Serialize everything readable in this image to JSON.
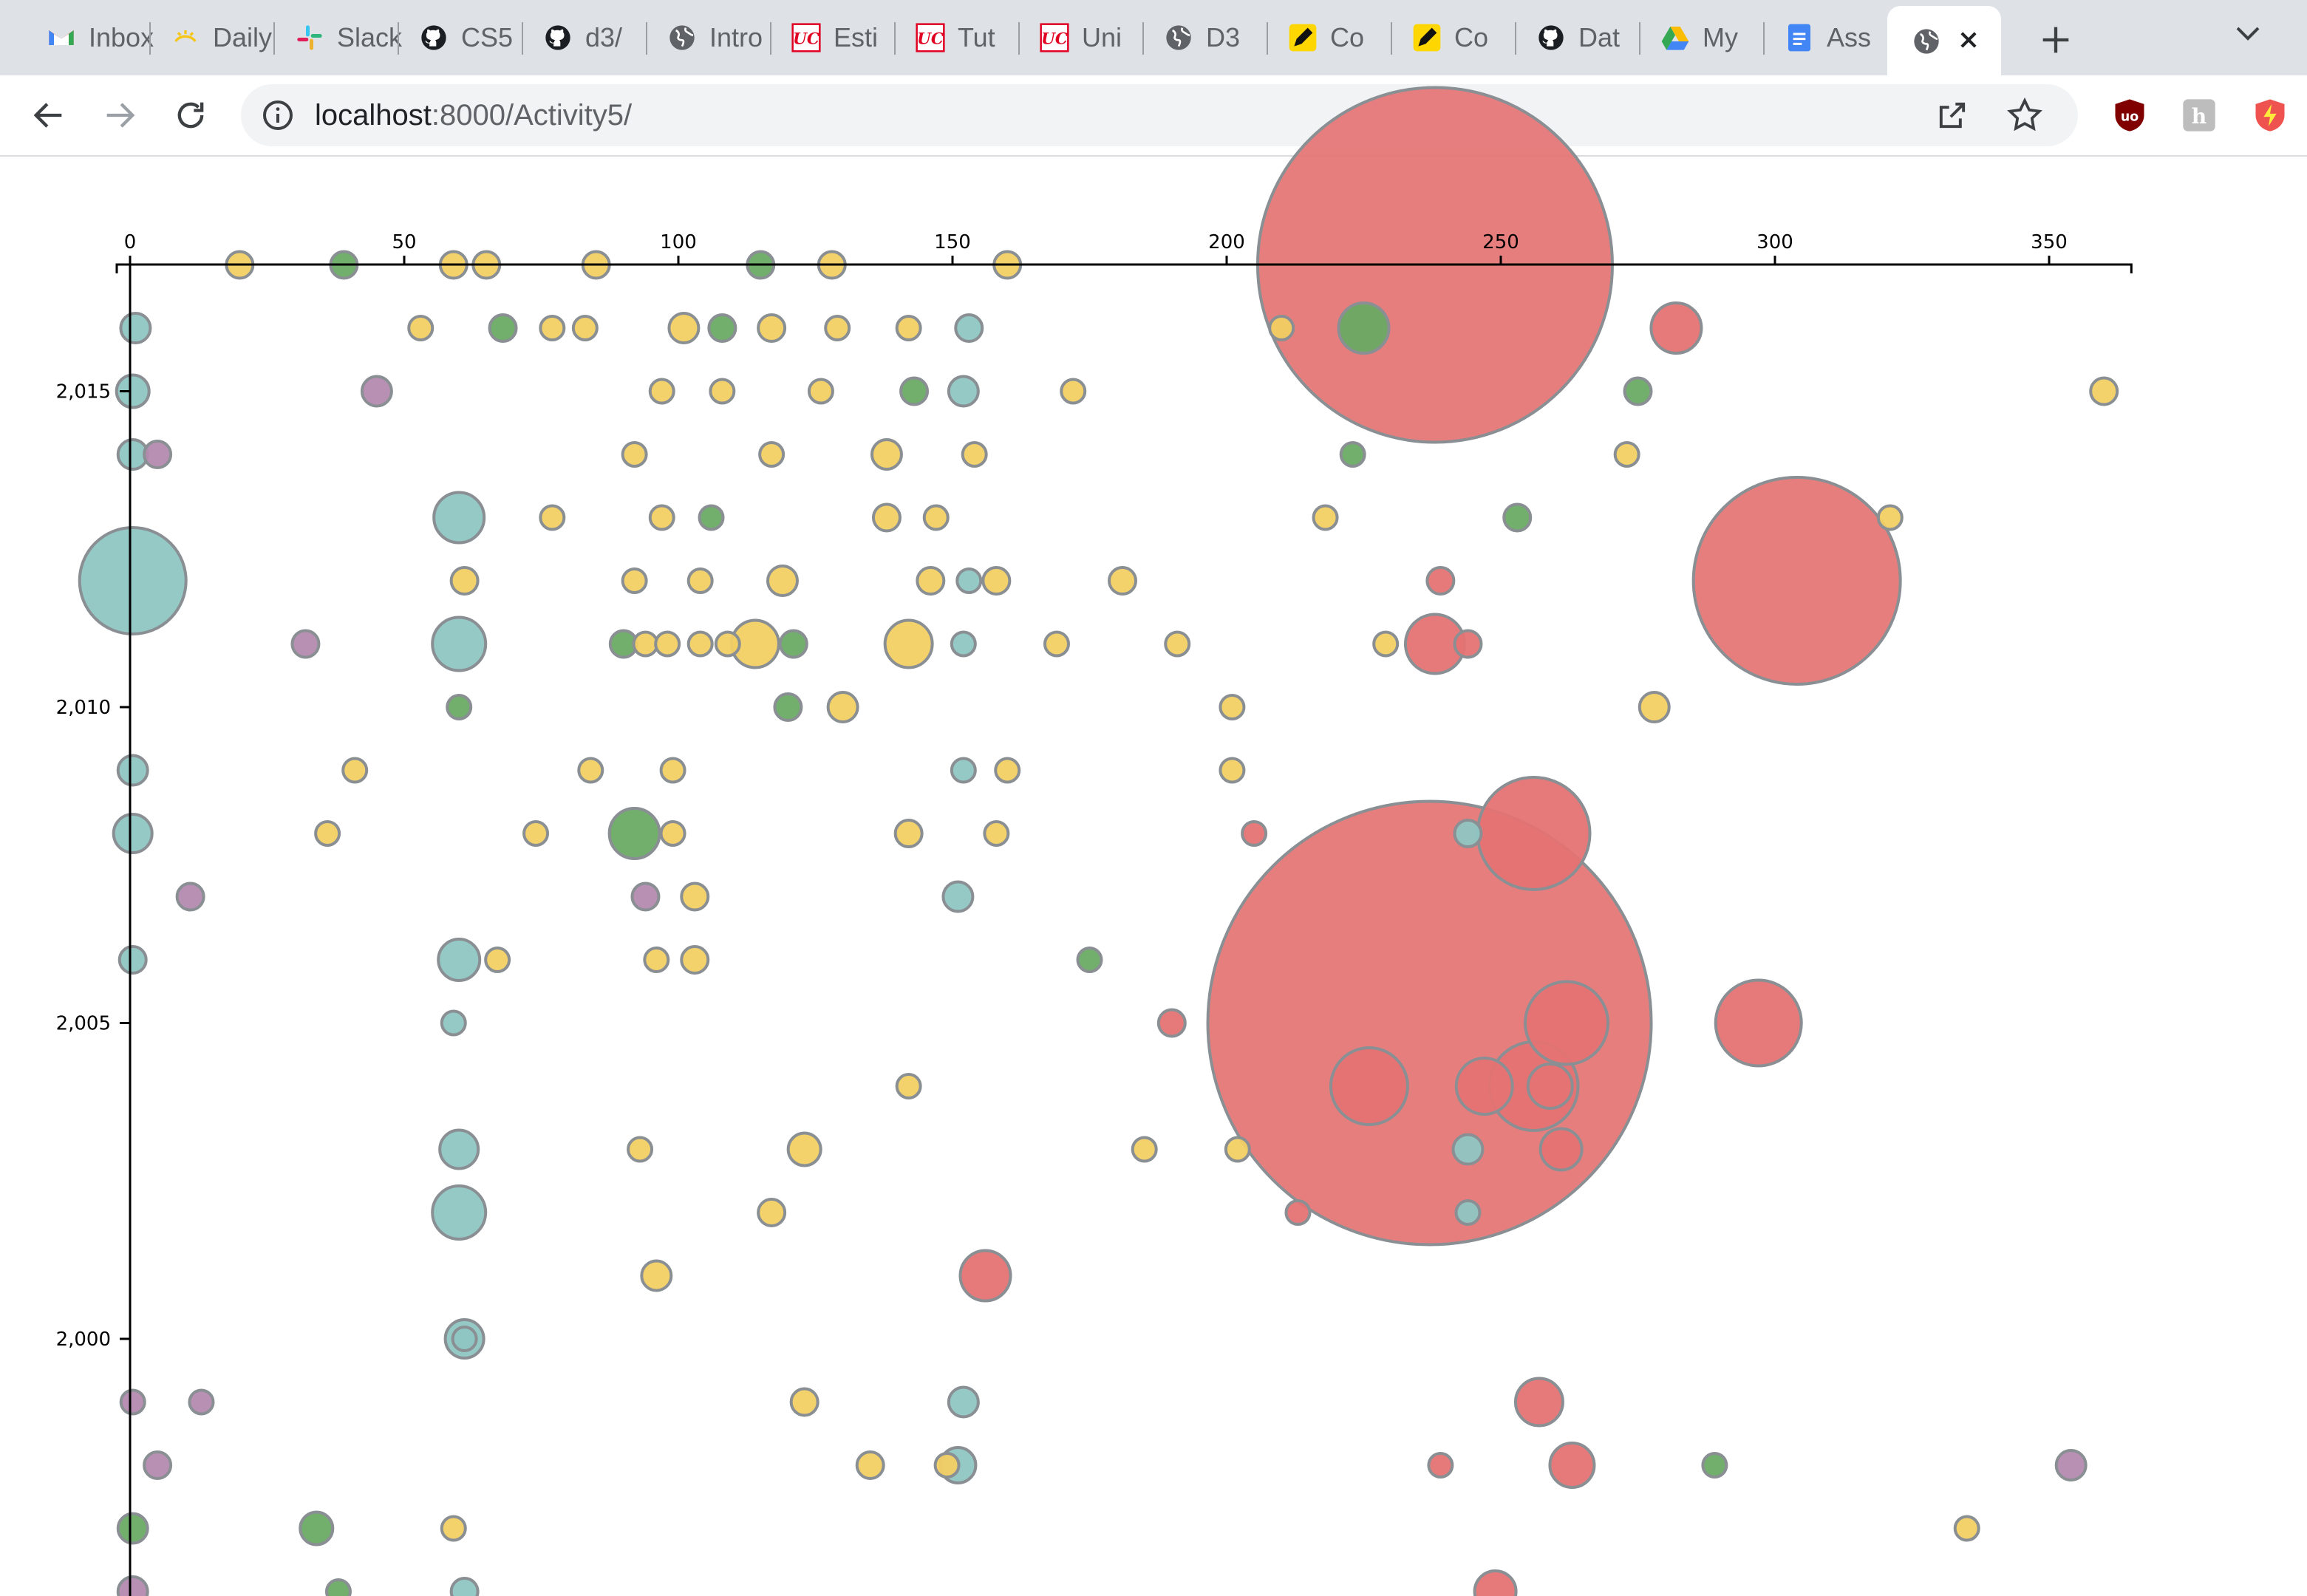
{
  "browser": {
    "tabs": [
      {
        "title": "Inbox",
        "icon": "gmail-icon"
      },
      {
        "title": "Daily",
        "icon": "sun-icon"
      },
      {
        "title": "Slack",
        "icon": "slack-icon"
      },
      {
        "title": "CS5",
        "icon": "github-icon"
      },
      {
        "title": "d3/",
        "icon": "github-icon"
      },
      {
        "title": "Intro",
        "icon": "globe-icon"
      },
      {
        "title": "Esti",
        "icon": "university-icon"
      },
      {
        "title": "Tut",
        "icon": "university-icon"
      },
      {
        "title": "Uni",
        "icon": "university-icon"
      },
      {
        "title": "D3",
        "icon": "globe-icon"
      },
      {
        "title": "Co",
        "icon": "pencil-icon"
      },
      {
        "title": "Co",
        "icon": "pencil-icon"
      },
      {
        "title": "Dat",
        "icon": "github-icon"
      },
      {
        "title": "My",
        "icon": "drive-icon"
      },
      {
        "title": "Ass",
        "icon": "docs-icon"
      }
    ],
    "active_tab": {
      "icon": "globe-icon"
    },
    "address": {
      "host": "localhost",
      "rest": ":8000/Activity5/"
    },
    "extensions": [
      "ublock-icon",
      "hypothesis-icon",
      "flash-icon"
    ]
  },
  "colors": {
    "teal": "#8ec6c3",
    "purple": "#b48aaf",
    "green": "#6aaa64",
    "yellow": "#f2cf63",
    "red": "#e57373",
    "stroke": "#8a8f94"
  },
  "chart_data": {
    "type": "scatter",
    "x_ticks": [
      {
        "value": 0,
        "label": "0"
      },
      {
        "value": 50,
        "label": "50"
      },
      {
        "value": 100,
        "label": "100"
      },
      {
        "value": 150,
        "label": "150"
      },
      {
        "value": 200,
        "label": "200"
      },
      {
        "value": 250,
        "label": "250"
      },
      {
        "value": 300,
        "label": "300"
      },
      {
        "value": 350,
        "label": "350"
      }
    ],
    "y_ticks": [
      {
        "value": 2000,
        "label": "2,000"
      },
      {
        "value": 2005,
        "label": "2,005"
      },
      {
        "value": 2010,
        "label": "2,010"
      },
      {
        "value": 2015,
        "label": "2,015"
      }
    ],
    "xlim": [
      0,
      365
    ],
    "ylim": [
      1996,
      2017.5
    ],
    "legend": "none",
    "grid": false,
    "points": [
      {
        "x": 20,
        "y": 2017,
        "c": "yellow",
        "r": 9
      },
      {
        "x": 39,
        "y": 2017,
        "c": "green",
        "r": 9
      },
      {
        "x": 59,
        "y": 2017,
        "c": "yellow",
        "r": 9
      },
      {
        "x": 65,
        "y": 2017,
        "c": "yellow",
        "r": 9
      },
      {
        "x": 85,
        "y": 2017,
        "c": "yellow",
        "r": 9
      },
      {
        "x": 115,
        "y": 2017,
        "c": "green",
        "r": 9
      },
      {
        "x": 128,
        "y": 2017,
        "c": "yellow",
        "r": 9
      },
      {
        "x": 160,
        "y": 2017,
        "c": "yellow",
        "r": 9
      },
      {
        "x": 238,
        "y": 2017,
        "c": "red",
        "r": 120
      },
      {
        "x": 1,
        "y": 2016,
        "c": "teal",
        "r": 10
      },
      {
        "x": 53,
        "y": 2016,
        "c": "yellow",
        "r": 8
      },
      {
        "x": 68,
        "y": 2016,
        "c": "green",
        "r": 9
      },
      {
        "x": 77,
        "y": 2016,
        "c": "yellow",
        "r": 8
      },
      {
        "x": 83,
        "y": 2016,
        "c": "yellow",
        "r": 8
      },
      {
        "x": 101,
        "y": 2016,
        "c": "yellow",
        "r": 10
      },
      {
        "x": 108,
        "y": 2016,
        "c": "green",
        "r": 9
      },
      {
        "x": 117,
        "y": 2016,
        "c": "yellow",
        "r": 9
      },
      {
        "x": 129,
        "y": 2016,
        "c": "yellow",
        "r": 8
      },
      {
        "x": 142,
        "y": 2016,
        "c": "yellow",
        "r": 8
      },
      {
        "x": 153,
        "y": 2016,
        "c": "teal",
        "r": 9
      },
      {
        "x": 210,
        "y": 2016,
        "c": "yellow",
        "r": 8
      },
      {
        "x": 225,
        "y": 2016,
        "c": "green",
        "r": 17
      },
      {
        "x": 282,
        "y": 2016,
        "c": "red",
        "r": 17
      },
      {
        "x": 0.5,
        "y": 2015,
        "c": "teal",
        "r": 11
      },
      {
        "x": 45,
        "y": 2015,
        "c": "purple",
        "r": 10
      },
      {
        "x": 97,
        "y": 2015,
        "c": "yellow",
        "r": 8
      },
      {
        "x": 108,
        "y": 2015,
        "c": "yellow",
        "r": 8
      },
      {
        "x": 126,
        "y": 2015,
        "c": "yellow",
        "r": 8
      },
      {
        "x": 143,
        "y": 2015,
        "c": "green",
        "r": 9
      },
      {
        "x": 152,
        "y": 2015,
        "c": "teal",
        "r": 10
      },
      {
        "x": 172,
        "y": 2015,
        "c": "yellow",
        "r": 8
      },
      {
        "x": 275,
        "y": 2015,
        "c": "green",
        "r": 9
      },
      {
        "x": 360,
        "y": 2015,
        "c": "yellow",
        "r": 9
      },
      {
        "x": 0.5,
        "y": 2014,
        "c": "teal",
        "r": 10
      },
      {
        "x": 5,
        "y": 2014,
        "c": "purple",
        "r": 9
      },
      {
        "x": 92,
        "y": 2014,
        "c": "yellow",
        "r": 8
      },
      {
        "x": 117,
        "y": 2014,
        "c": "yellow",
        "r": 8
      },
      {
        "x": 138,
        "y": 2014,
        "c": "yellow",
        "r": 10
      },
      {
        "x": 154,
        "y": 2014,
        "c": "yellow",
        "r": 8
      },
      {
        "x": 223,
        "y": 2014,
        "c": "green",
        "r": 8
      },
      {
        "x": 273,
        "y": 2014,
        "c": "yellow",
        "r": 8
      },
      {
        "x": 60,
        "y": 2013,
        "c": "teal",
        "r": 17
      },
      {
        "x": 77,
        "y": 2013,
        "c": "yellow",
        "r": 8
      },
      {
        "x": 97,
        "y": 2013,
        "c": "yellow",
        "r": 8
      },
      {
        "x": 106,
        "y": 2013,
        "c": "green",
        "r": 8
      },
      {
        "x": 138,
        "y": 2013,
        "c": "yellow",
        "r": 9
      },
      {
        "x": 147,
        "y": 2013,
        "c": "yellow",
        "r": 8
      },
      {
        "x": 218,
        "y": 2013,
        "c": "yellow",
        "r": 8
      },
      {
        "x": 253,
        "y": 2013,
        "c": "green",
        "r": 9
      },
      {
        "x": 321,
        "y": 2013,
        "c": "yellow",
        "r": 8
      },
      {
        "x": 0.5,
        "y": 2012,
        "c": "teal",
        "r": 36
      },
      {
        "x": 61,
        "y": 2012,
        "c": "yellow",
        "r": 9
      },
      {
        "x": 92,
        "y": 2012,
        "c": "yellow",
        "r": 8
      },
      {
        "x": 104,
        "y": 2012,
        "c": "yellow",
        "r": 8
      },
      {
        "x": 119,
        "y": 2012,
        "c": "yellow",
        "r": 10
      },
      {
        "x": 146,
        "y": 2012,
        "c": "yellow",
        "r": 9
      },
      {
        "x": 153,
        "y": 2012,
        "c": "teal",
        "r": 8
      },
      {
        "x": 158,
        "y": 2012,
        "c": "yellow",
        "r": 9
      },
      {
        "x": 181,
        "y": 2012,
        "c": "yellow",
        "r": 9
      },
      {
        "x": 239,
        "y": 2012,
        "c": "red",
        "r": 9
      },
      {
        "x": 304,
        "y": 2012,
        "c": "red",
        "r": 70
      },
      {
        "x": 32,
        "y": 2011,
        "c": "purple",
        "r": 9
      },
      {
        "x": 60,
        "y": 2011,
        "c": "teal",
        "r": 18
      },
      {
        "x": 90,
        "y": 2011,
        "c": "green",
        "r": 9
      },
      {
        "x": 94,
        "y": 2011,
        "c": "yellow",
        "r": 8
      },
      {
        "x": 98,
        "y": 2011,
        "c": "yellow",
        "r": 8
      },
      {
        "x": 104,
        "y": 2011,
        "c": "yellow",
        "r": 8
      },
      {
        "x": 109,
        "y": 2011,
        "c": "yellow",
        "r": 8
      },
      {
        "x": 114,
        "y": 2011,
        "c": "yellow",
        "r": 16
      },
      {
        "x": 121,
        "y": 2011,
        "c": "green",
        "r": 9
      },
      {
        "x": 142,
        "y": 2011,
        "c": "yellow",
        "r": 16
      },
      {
        "x": 152,
        "y": 2011,
        "c": "teal",
        "r": 8
      },
      {
        "x": 169,
        "y": 2011,
        "c": "yellow",
        "r": 8
      },
      {
        "x": 191,
        "y": 2011,
        "c": "yellow",
        "r": 8
      },
      {
        "x": 229,
        "y": 2011,
        "c": "yellow",
        "r": 8
      },
      {
        "x": 238,
        "y": 2011,
        "c": "red",
        "r": 20
      },
      {
        "x": 244,
        "y": 2011,
        "c": "red",
        "r": 9
      },
      {
        "x": 60,
        "y": 2010,
        "c": "green",
        "r": 8
      },
      {
        "x": 120,
        "y": 2010,
        "c": "green",
        "r": 9
      },
      {
        "x": 130,
        "y": 2010,
        "c": "yellow",
        "r": 10
      },
      {
        "x": 201,
        "y": 2010,
        "c": "yellow",
        "r": 8
      },
      {
        "x": 278,
        "y": 2010,
        "c": "yellow",
        "r": 10
      },
      {
        "x": 0.5,
        "y": 2009,
        "c": "teal",
        "r": 10
      },
      {
        "x": 41,
        "y": 2009,
        "c": "yellow",
        "r": 8
      },
      {
        "x": 84,
        "y": 2009,
        "c": "yellow",
        "r": 8
      },
      {
        "x": 99,
        "y": 2009,
        "c": "yellow",
        "r": 8
      },
      {
        "x": 152,
        "y": 2009,
        "c": "teal",
        "r": 8
      },
      {
        "x": 160,
        "y": 2009,
        "c": "yellow",
        "r": 8
      },
      {
        "x": 201,
        "y": 2009,
        "c": "yellow",
        "r": 8
      },
      {
        "x": 0.5,
        "y": 2008,
        "c": "teal",
        "r": 13
      },
      {
        "x": 36,
        "y": 2008,
        "c": "yellow",
        "r": 8
      },
      {
        "x": 74,
        "y": 2008,
        "c": "yellow",
        "r": 8
      },
      {
        "x": 92,
        "y": 2008,
        "c": "green",
        "r": 17
      },
      {
        "x": 99,
        "y": 2008,
        "c": "yellow",
        "r": 8
      },
      {
        "x": 142,
        "y": 2008,
        "c": "yellow",
        "r": 9
      },
      {
        "x": 158,
        "y": 2008,
        "c": "yellow",
        "r": 8
      },
      {
        "x": 205,
        "y": 2008,
        "c": "red",
        "r": 8
      },
      {
        "x": 244,
        "y": 2008,
        "c": "teal",
        "r": 9
      },
      {
        "x": 256,
        "y": 2008,
        "c": "red",
        "r": 38
      },
      {
        "x": 11,
        "y": 2007,
        "c": "purple",
        "r": 9
      },
      {
        "x": 94,
        "y": 2007,
        "c": "purple",
        "r": 9
      },
      {
        "x": 103,
        "y": 2007,
        "c": "yellow",
        "r": 9
      },
      {
        "x": 151,
        "y": 2007,
        "c": "teal",
        "r": 10
      },
      {
        "x": 0.5,
        "y": 2006,
        "c": "teal",
        "r": 9
      },
      {
        "x": 60,
        "y": 2006,
        "c": "teal",
        "r": 14
      },
      {
        "x": 67,
        "y": 2006,
        "c": "yellow",
        "r": 8
      },
      {
        "x": 96,
        "y": 2006,
        "c": "yellow",
        "r": 8
      },
      {
        "x": 103,
        "y": 2006,
        "c": "yellow",
        "r": 9
      },
      {
        "x": 175,
        "y": 2006,
        "c": "green",
        "r": 8
      },
      {
        "x": 59,
        "y": 2005,
        "c": "teal",
        "r": 8
      },
      {
        "x": 190,
        "y": 2005,
        "c": "red",
        "r": 9
      },
      {
        "x": 237,
        "y": 2005,
        "c": "red",
        "r": 150
      },
      {
        "x": 262,
        "y": 2005,
        "c": "red",
        "r": 28
      },
      {
        "x": 297,
        "y": 2005,
        "c": "red",
        "r": 29
      },
      {
        "x": 142,
        "y": 2004,
        "c": "yellow",
        "r": 8
      },
      {
        "x": 226,
        "y": 2004,
        "c": "red",
        "r": 26
      },
      {
        "x": 247,
        "y": 2004,
        "c": "red",
        "r": 19
      },
      {
        "x": 256,
        "y": 2004,
        "c": "red",
        "r": 30
      },
      {
        "x": 259,
        "y": 2004,
        "c": "red",
        "r": 15
      },
      {
        "x": 60,
        "y": 2003,
        "c": "teal",
        "r": 13
      },
      {
        "x": 93,
        "y": 2003,
        "c": "yellow",
        "r": 8
      },
      {
        "x": 123,
        "y": 2003,
        "c": "yellow",
        "r": 11
      },
      {
        "x": 185,
        "y": 2003,
        "c": "yellow",
        "r": 8
      },
      {
        "x": 202,
        "y": 2003,
        "c": "yellow",
        "r": 8
      },
      {
        "x": 244,
        "y": 2003,
        "c": "teal",
        "r": 10
      },
      {
        "x": 261,
        "y": 2003,
        "c": "red",
        "r": 14
      },
      {
        "x": 60,
        "y": 2002,
        "c": "teal",
        "r": 18
      },
      {
        "x": 117,
        "y": 2002,
        "c": "yellow",
        "r": 9
      },
      {
        "x": 213,
        "y": 2002,
        "c": "red",
        "r": 8
      },
      {
        "x": 244,
        "y": 2002,
        "c": "teal",
        "r": 8
      },
      {
        "x": 96,
        "y": 2001,
        "c": "yellow",
        "r": 10
      },
      {
        "x": 156,
        "y": 2001,
        "c": "red",
        "r": 17
      },
      {
        "x": 61,
        "y": 2000,
        "c": "teal",
        "r": 13
      },
      {
        "x": 61,
        "y": 2000,
        "c": "teal",
        "r": 8
      },
      {
        "x": 0.5,
        "y": 1999,
        "c": "purple",
        "r": 8
      },
      {
        "x": 13,
        "y": 1999,
        "c": "purple",
        "r": 8
      },
      {
        "x": 123,
        "y": 1999,
        "c": "yellow",
        "r": 9
      },
      {
        "x": 152,
        "y": 1999,
        "c": "teal",
        "r": 10
      },
      {
        "x": 257,
        "y": 1999,
        "c": "red",
        "r": 16
      },
      {
        "x": 5,
        "y": 1998,
        "c": "purple",
        "r": 9
      },
      {
        "x": 135,
        "y": 1998,
        "c": "yellow",
        "r": 9
      },
      {
        "x": 151,
        "y": 1998,
        "c": "teal",
        "r": 12
      },
      {
        "x": 149,
        "y": 1998,
        "c": "yellow",
        "r": 8
      },
      {
        "x": 239,
        "y": 1998,
        "c": "red",
        "r": 8
      },
      {
        "x": 263,
        "y": 1998,
        "c": "red",
        "r": 15
      },
      {
        "x": 289,
        "y": 1998,
        "c": "green",
        "r": 8
      },
      {
        "x": 354,
        "y": 1998,
        "c": "purple",
        "r": 10
      },
      {
        "x": 0.5,
        "y": 1997,
        "c": "green",
        "r": 10
      },
      {
        "x": 34,
        "y": 1997,
        "c": "green",
        "r": 11
      },
      {
        "x": 59,
        "y": 1997,
        "c": "yellow",
        "r": 8
      },
      {
        "x": 335,
        "y": 1997,
        "c": "yellow",
        "r": 8
      },
      {
        "x": 0.5,
        "y": 1996,
        "c": "purple",
        "r": 10
      },
      {
        "x": 38,
        "y": 1996,
        "c": "green",
        "r": 8
      },
      {
        "x": 61,
        "y": 1996,
        "c": "teal",
        "r": 9
      },
      {
        "x": 249,
        "y": 1996,
        "c": "red",
        "r": 14
      }
    ]
  }
}
